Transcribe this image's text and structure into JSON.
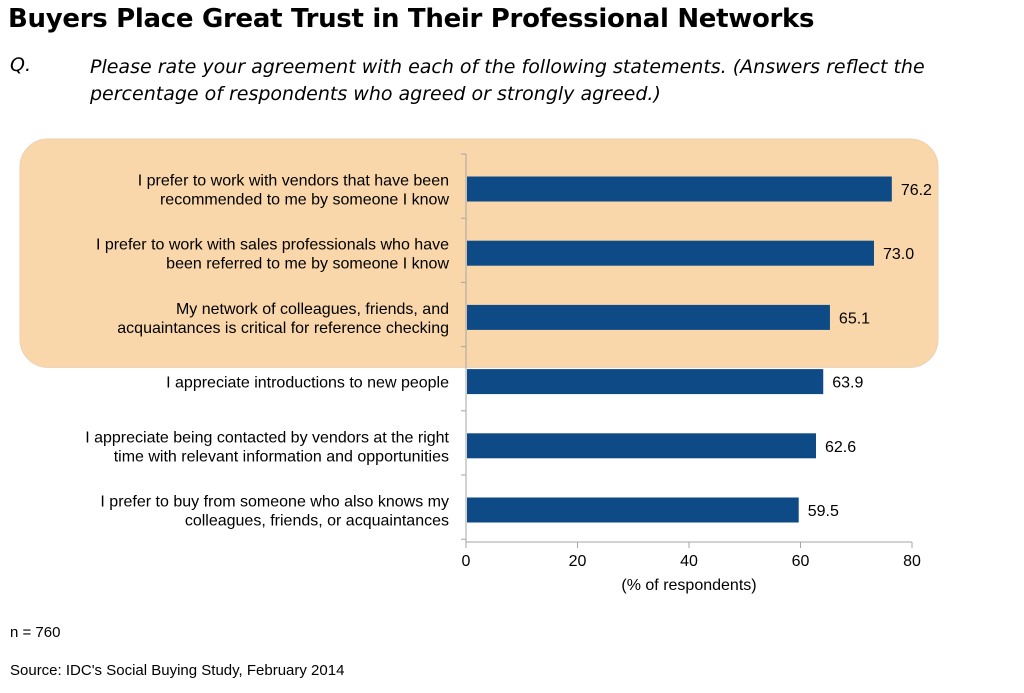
{
  "title": "Buyers Place Great Trust in Their Professional Networks",
  "question_label": "Q.",
  "question": "Please rate your agreement with each of the following statements. (Answers reflect the percentage of respondents who agreed or strongly agreed.)",
  "sample_note": "n = 760",
  "source": "Source: IDC's Social Buying Study, February 2014",
  "colors": {
    "bar": "#0d4a86",
    "highlight_fill": "#f9d7aa",
    "axis": "#a6a6a6"
  },
  "chart_data": {
    "type": "bar",
    "orientation": "horizontal",
    "title": "",
    "xlabel": "(% of respondents)",
    "ylabel": "",
    "xlim": [
      0,
      80
    ],
    "xticks": [
      0,
      20,
      40,
      60,
      80
    ],
    "grid": false,
    "highlighted_categories": [
      0,
      1,
      2
    ],
    "categories": [
      [
        "I prefer to work with vendors that have been",
        "recommended to me by someone I know"
      ],
      [
        "I prefer to work with sales professionals who have",
        "been referred to me by someone I know"
      ],
      [
        "My network of colleagues, friends, and",
        "acquaintances is critical for reference checking"
      ],
      [
        "I appreciate introductions to new people"
      ],
      [
        "I appreciate being contacted by vendors at the right",
        "time with relevant information and opportunities"
      ],
      [
        "I prefer to buy from someone who also knows my",
        "colleagues, friends, or acquaintances"
      ]
    ],
    "values": [
      76.2,
      73.0,
      65.1,
      63.9,
      62.6,
      59.5
    ],
    "value_labels": [
      "76.2",
      "73.0",
      "65.1",
      "63.9",
      "62.6",
      "59.5"
    ]
  }
}
